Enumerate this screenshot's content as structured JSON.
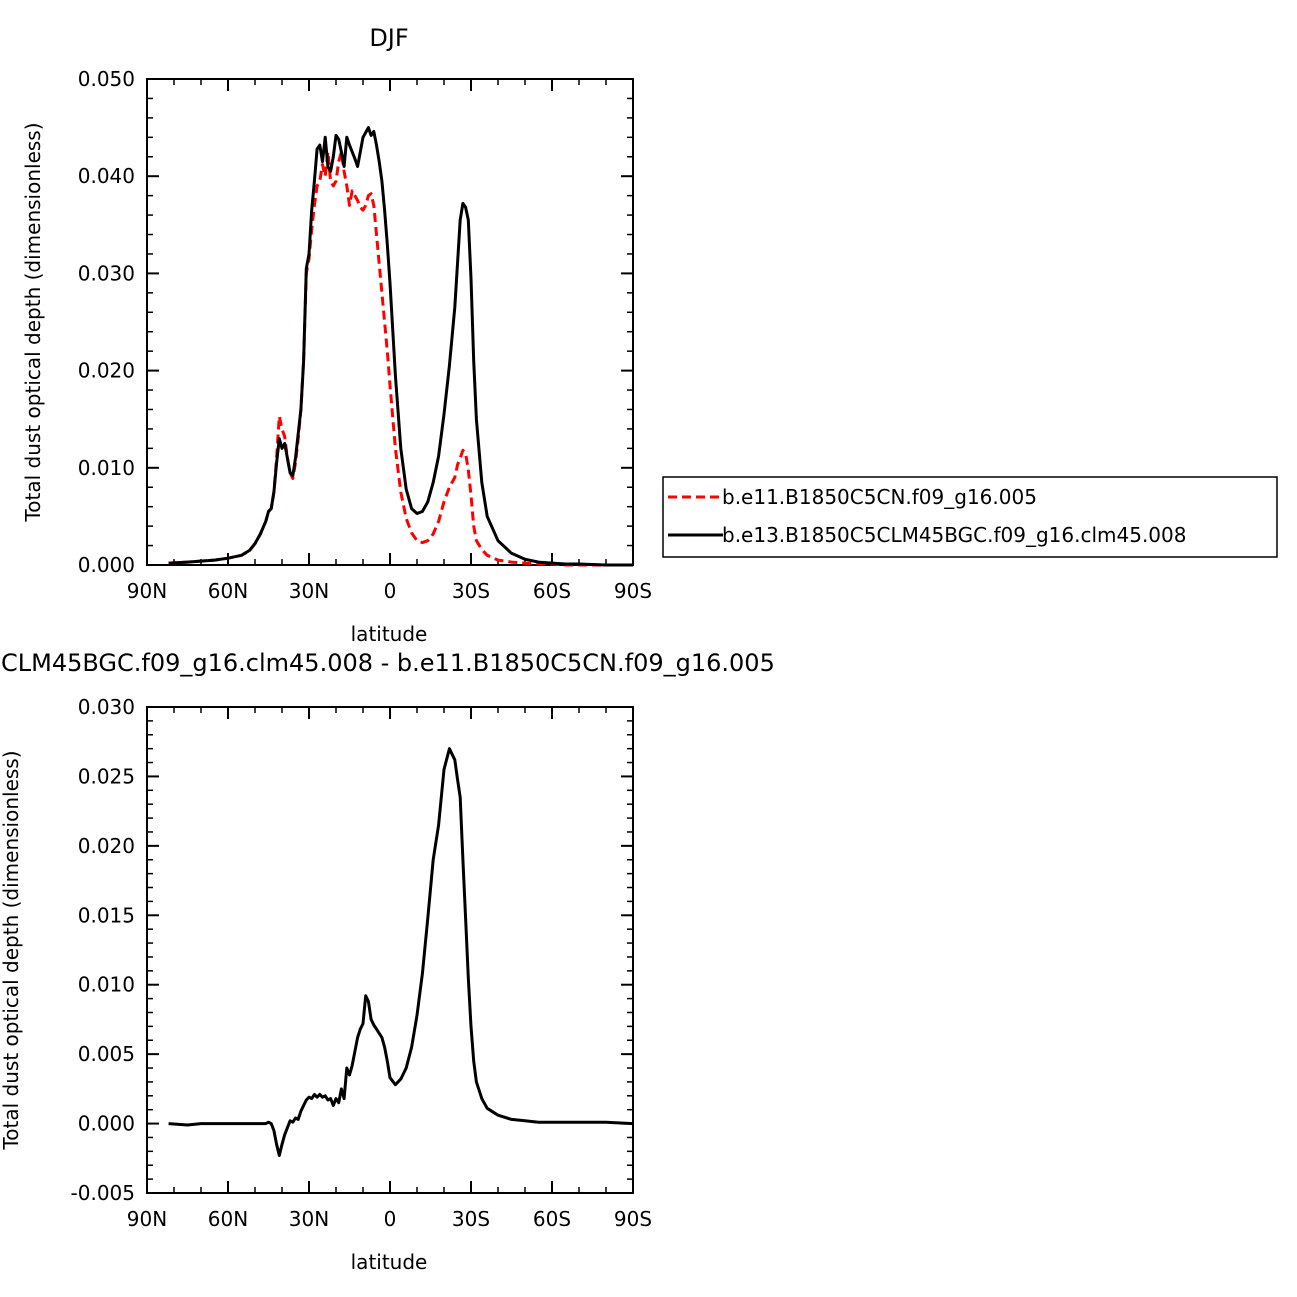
{
  "colors": {
    "series_red": "#ff0000",
    "series_black": "#000000",
    "axes": "#000000",
    "background": "#ffffff"
  },
  "chart_data": [
    {
      "type": "line",
      "title": "DJF",
      "xlabel": "latitude",
      "ylabel": "Total dust optical depth (dimensionless)",
      "xlim": [
        90,
        -90
      ],
      "ylim": [
        0.0,
        0.05
      ],
      "xticks": [
        90,
        60,
        30,
        0,
        -30,
        -60,
        -90
      ],
      "xtick_labels": [
        "90N",
        "60N",
        "30N",
        "0",
        "30S",
        "60S",
        "90S"
      ],
      "yticks": [
        0.0,
        0.01,
        0.02,
        0.03,
        0.04,
        0.05
      ],
      "ytick_labels": [
        "0.000",
        "0.010",
        "0.020",
        "0.030",
        "0.040",
        "0.050"
      ],
      "grid": false,
      "legend_position": "right, outside plot",
      "series": [
        {
          "name": "b.e11.B1850C5CN.f09_g16.005",
          "style": "dashed",
          "color": "#ff0000",
          "x": [
            82,
            75,
            70,
            65,
            60,
            55,
            52,
            50,
            48,
            46,
            45,
            44,
            43,
            42,
            41,
            40,
            39,
            38,
            37,
            36,
            35,
            34,
            33,
            32,
            31,
            30,
            29,
            28,
            27,
            26,
            25,
            24,
            23,
            22,
            21,
            20,
            19,
            18,
            17,
            16,
            15,
            14,
            13,
            12,
            11,
            10,
            9,
            8,
            7,
            6,
            5,
            4,
            3,
            2,
            1,
            0,
            -2,
            -4,
            -6,
            -8,
            -10,
            -12,
            -14,
            -16,
            -18,
            -20,
            -22,
            -24,
            -25,
            -26,
            -27,
            -28,
            -29,
            -30,
            -31,
            -32,
            -34,
            -36,
            -40,
            -45,
            -50,
            -55,
            -60,
            -65,
            -70,
            -80,
            -90
          ],
          "y": [
            0.0002,
            0.0003,
            0.0004,
            0.0005,
            0.0007,
            0.001,
            0.0015,
            0.0022,
            0.0032,
            0.0045,
            0.0055,
            0.0058,
            0.0075,
            0.011,
            0.0153,
            0.014,
            0.0132,
            0.011,
            0.0095,
            0.0089,
            0.0105,
            0.013,
            0.016,
            0.021,
            0.03,
            0.0315,
            0.0345,
            0.037,
            0.039,
            0.0395,
            0.0412,
            0.04,
            0.0425,
            0.0395,
            0.039,
            0.0395,
            0.0415,
            0.0425,
            0.0405,
            0.039,
            0.037,
            0.0385,
            0.038,
            0.0375,
            0.0368,
            0.0365,
            0.037,
            0.038,
            0.0382,
            0.037,
            0.034,
            0.031,
            0.028,
            0.025,
            0.022,
            0.0185,
            0.012,
            0.0075,
            0.0048,
            0.0033,
            0.0025,
            0.0023,
            0.0025,
            0.0032,
            0.0045,
            0.0065,
            0.008,
            0.009,
            0.0103,
            0.011,
            0.0118,
            0.0115,
            0.0098,
            0.0072,
            0.004,
            0.0025,
            0.0016,
            0.001,
            0.0005,
            0.0003,
            0.0002,
            0.0001,
            0.0001,
            0.0,
            0.0,
            0.0,
            0.0
          ]
        },
        {
          "name": "b.e13.B1850C5CLM45BGC.f09_g16.clm45.008",
          "style": "solid",
          "color": "#000000",
          "x": [
            82,
            75,
            70,
            65,
            60,
            55,
            52,
            50,
            48,
            46,
            45,
            44,
            43,
            42,
            41,
            40,
            39,
            38,
            37,
            36,
            35,
            34,
            33,
            32,
            31,
            30,
            29,
            28,
            27,
            26,
            25,
            24,
            23,
            22,
            21,
            20,
            19,
            18,
            17,
            16,
            15,
            14,
            13,
            12,
            11,
            10,
            9,
            8,
            7,
            6,
            5,
            4,
            3,
            2,
            1,
            0,
            -2,
            -4,
            -6,
            -8,
            -10,
            -12,
            -14,
            -16,
            -18,
            -20,
            -22,
            -24,
            -25,
            -26,
            -27,
            -28,
            -29,
            -30,
            -31,
            -32,
            -34,
            -36,
            -40,
            -45,
            -50,
            -55,
            -60,
            -65,
            -70,
            -80,
            -90
          ],
          "y": [
            0.0002,
            0.0003,
            0.0004,
            0.0005,
            0.0007,
            0.001,
            0.0015,
            0.0022,
            0.0032,
            0.0045,
            0.0055,
            0.0058,
            0.0075,
            0.0105,
            0.013,
            0.012,
            0.0125,
            0.011,
            0.0095,
            0.0092,
            0.011,
            0.0135,
            0.016,
            0.021,
            0.0305,
            0.032,
            0.0365,
            0.0395,
            0.0428,
            0.0432,
            0.0415,
            0.044,
            0.041,
            0.0405,
            0.042,
            0.0442,
            0.0438,
            0.0425,
            0.041,
            0.044,
            0.0432,
            0.0425,
            0.0418,
            0.041,
            0.0425,
            0.044,
            0.0445,
            0.045,
            0.0442,
            0.0446,
            0.0432,
            0.0415,
            0.0395,
            0.0365,
            0.033,
            0.029,
            0.0195,
            0.012,
            0.0078,
            0.0058,
            0.0053,
            0.0055,
            0.0065,
            0.0085,
            0.0112,
            0.0155,
            0.0205,
            0.0265,
            0.031,
            0.0355,
            0.0372,
            0.0368,
            0.0355,
            0.0295,
            0.021,
            0.015,
            0.0085,
            0.005,
            0.0025,
            0.0012,
            0.0006,
            0.0003,
            0.0002,
            0.0001,
            0.0001,
            0.0,
            0.0
          ]
        }
      ]
    },
    {
      "type": "line",
      "title": "CLM45BGC.f09_g16.clm45.008 - b.e11.B1850C5CN.f09_g16.005",
      "xlabel": "latitude",
      "ylabel": "Total dust optical depth (dimensionless)",
      "xlim": [
        90,
        -90
      ],
      "ylim": [
        -0.005,
        0.03
      ],
      "xticks": [
        90,
        60,
        30,
        0,
        -30,
        -60,
        -90
      ],
      "xtick_labels": [
        "90N",
        "60N",
        "30N",
        "0",
        "30S",
        "60S",
        "90S"
      ],
      "yticks": [
        -0.005,
        0.0,
        0.005,
        0.01,
        0.015,
        0.02,
        0.025,
        0.03
      ],
      "ytick_labels": [
        "-0.005",
        "0.000",
        "0.005",
        "0.010",
        "0.015",
        "0.020",
        "0.025",
        "0.030"
      ],
      "grid": false,
      "series": [
        {
          "style": "solid",
          "color": "#000000",
          "x": [
            82,
            75,
            70,
            65,
            60,
            55,
            50,
            48,
            46,
            45,
            44,
            43,
            42,
            41,
            40,
            39,
            38,
            37,
            36,
            35,
            34,
            33,
            32,
            31,
            30,
            29,
            28,
            27,
            26,
            25,
            24,
            23,
            22,
            21,
            20,
            19,
            18,
            17,
            16,
            15,
            14,
            13,
            12,
            11,
            10,
            9,
            8,
            7,
            6,
            5,
            4,
            3,
            2,
            1,
            0,
            -2,
            -4,
            -6,
            -8,
            -10,
            -12,
            -14,
            -16,
            -18,
            -20,
            -22,
            -24,
            -25,
            -26,
            -27,
            -28,
            -29,
            -30,
            -31,
            -32,
            -34,
            -36,
            -40,
            -45,
            -50,
            -55,
            -60,
            -65,
            -70,
            -80,
            -90
          ],
          "y": [
            0.0,
            -0.0001,
            0.0,
            0.0,
            0.0,
            0.0,
            0.0,
            0.0,
            0.0,
            0.0001,
            0.0,
            -0.0005,
            -0.0015,
            -0.0023,
            -0.0015,
            -0.0008,
            -0.0003,
            0.0002,
            0.0001,
            0.0004,
            0.0003,
            0.0009,
            0.0013,
            0.0017,
            0.0019,
            0.0018,
            0.0021,
            0.0019,
            0.0021,
            0.0019,
            0.002,
            0.0017,
            0.0018,
            0.0013,
            0.0018,
            0.0015,
            0.0025,
            0.0018,
            0.004,
            0.0035,
            0.0042,
            0.0052,
            0.0062,
            0.0068,
            0.0072,
            0.0092,
            0.0088,
            0.0075,
            0.0071,
            0.0068,
            0.0065,
            0.0062,
            0.0055,
            0.0045,
            0.0033,
            0.0028,
            0.0032,
            0.004,
            0.0055,
            0.0078,
            0.0108,
            0.0148,
            0.019,
            0.0215,
            0.0255,
            0.027,
            0.0262,
            0.0248,
            0.0235,
            0.019,
            0.0148,
            0.0105,
            0.007,
            0.0045,
            0.003,
            0.0018,
            0.0011,
            0.0006,
            0.0003,
            0.0002,
            0.0001,
            0.0001,
            0.0001,
            0.0001,
            0.0001,
            0.0
          ]
        }
      ]
    }
  ]
}
